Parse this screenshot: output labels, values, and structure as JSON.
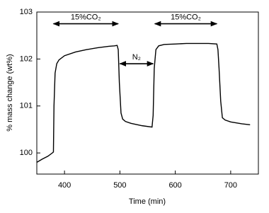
{
  "chart_data": {
    "type": "line",
    "xlabel": "Time (min)",
    "ylabel": "% mass change (wt%)",
    "x": [
      350,
      360,
      370,
      378,
      380,
      381,
      383,
      386,
      390,
      400,
      420,
      440,
      460,
      480,
      490,
      495,
      497,
      499,
      502,
      505,
      510,
      520,
      540,
      558,
      560,
      562,
      565,
      570,
      580,
      600,
      620,
      640,
      660,
      675,
      677,
      679,
      682,
      685,
      690,
      700,
      720,
      735
    ],
    "series": [
      {
        "color": "#000000",
        "values": [
          99.8,
          99.87,
          99.93,
          100.0,
          100.02,
          101.0,
          101.7,
          101.9,
          101.98,
          102.07,
          102.15,
          102.2,
          102.24,
          102.27,
          102.28,
          102.29,
          102.2,
          101.5,
          100.85,
          100.72,
          100.67,
          100.63,
          100.58,
          100.55,
          100.8,
          101.8,
          102.2,
          102.28,
          102.31,
          102.32,
          102.33,
          102.33,
          102.33,
          102.32,
          102.2,
          101.8,
          101.1,
          100.75,
          100.7,
          100.66,
          100.62,
          100.6
        ]
      }
    ],
    "xlim": [
      350,
      750
    ],
    "ylim": [
      99.55,
      103
    ],
    "xticks": [
      400,
      500,
      600,
      700
    ],
    "yticks": [
      100,
      101,
      102,
      103
    ],
    "annotations": [
      {
        "text": "15%CO₂",
        "x": [
          380,
          497
        ],
        "y": 102.75
      },
      {
        "text": "N₂",
        "x": [
          500,
          560
        ],
        "y": 101.9
      },
      {
        "text": "15%CO₂",
        "x": [
          563,
          675
        ],
        "y": 102.75
      }
    ]
  }
}
